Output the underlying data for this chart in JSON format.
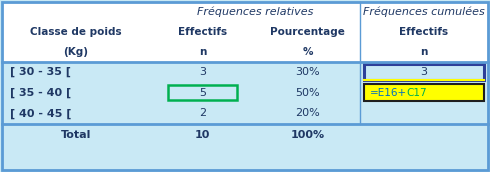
{
  "title_rel": "Fréquences relatives",
  "title_cum": "Fréquences cumulées",
  "header1": [
    "Classe de poids",
    "Effectifs",
    "Pourcentage",
    "Effectifs"
  ],
  "header2": [
    "(Kg)",
    "n",
    "%",
    "n"
  ],
  "rows": [
    [
      "[ 30 - 35 [",
      "3",
      "30%",
      "3"
    ],
    [
      "[ 35 - 40 [",
      "5",
      "50%",
      "=E16+C17"
    ],
    [
      "[ 40 - 45 [",
      "2",
      "20%",
      ""
    ]
  ],
  "total_row": [
    "Total",
    "10",
    "100%",
    ""
  ],
  "bg_color": "#c9e9f5",
  "header_bg": "#ffffff",
  "border_color": "#4472c4",
  "border_color2": "#5b9bd5",
  "text_color": "#1f3864",
  "green_box_color": "#00b050",
  "blue_box_color": "#2e4099",
  "yellow_color": "#ffff00",
  "formula_blue": "#0070c0",
  "formula_green": "#00b050",
  "formula_dark": "#1f1f1f"
}
